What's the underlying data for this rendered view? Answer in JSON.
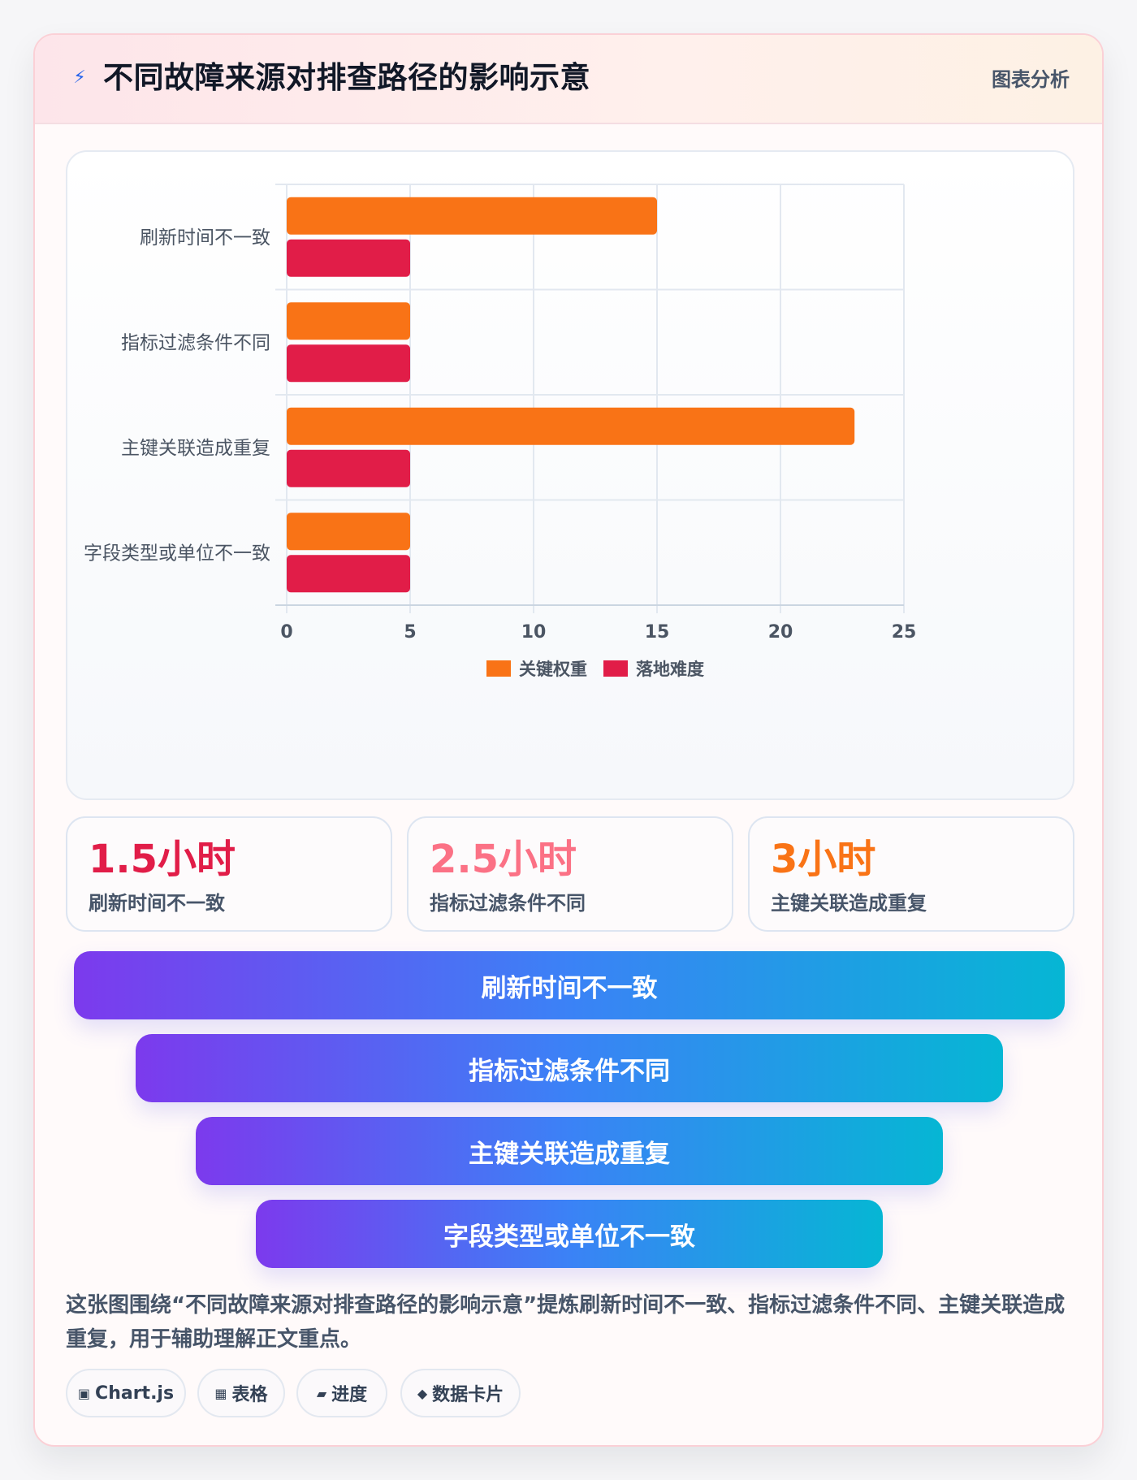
{
  "header": {
    "icon": "lightning-icon",
    "title": "不同故障来源对排查路径的影响示意",
    "tag": "图表分析"
  },
  "chart_data": {
    "type": "bar",
    "orientation": "horizontal",
    "categories": [
      "刷新时间不一致",
      "指标过滤条件不同",
      "主键关联造成重复",
      "字段类型或单位不一致"
    ],
    "series": [
      {
        "name": "关键权重",
        "color": "#f97316",
        "values": [
          15,
          5,
          23,
          5
        ]
      },
      {
        "name": "落地难度",
        "color": "#e11d48",
        "values": [
          5,
          5,
          5,
          5
        ]
      }
    ],
    "xlim": [
      0,
      25
    ],
    "xticks": [
      "0",
      "5",
      "10",
      "15",
      "20",
      "25"
    ],
    "grid": true,
    "legend_position": "bottom-center"
  },
  "stats": [
    {
      "value": "1.5小时",
      "label": "刷新时间不一致",
      "color": "#e11d48"
    },
    {
      "value": "2.5小时",
      "label": "指标过滤条件不同",
      "color": "#fb7185"
    },
    {
      "value": "3小时",
      "label": "主键关联造成重复",
      "color": "#f97316"
    }
  ],
  "funnel": [
    {
      "label": "刷新时间不一致"
    },
    {
      "label": "指标过滤条件不同"
    },
    {
      "label": "主键关联造成重复"
    },
    {
      "label": "字段类型或单位不一致"
    }
  ],
  "description": "这张图围绕“不同故障来源对排查路径的影响示意”提炼刷新时间不一致、指标过滤条件不同、主键关联造成重复，用于辅助理解正文重点。",
  "badges": [
    {
      "icon": "▣",
      "icon_name": "chart-icon",
      "label": "Chart.js"
    },
    {
      "icon": "▦",
      "icon_name": "table-icon",
      "label": "表格"
    },
    {
      "icon": "▰",
      "icon_name": "progress-icon",
      "label": "进度"
    },
    {
      "icon": "◆",
      "icon_name": "diamond-icon",
      "label": "数据卡片"
    }
  ]
}
